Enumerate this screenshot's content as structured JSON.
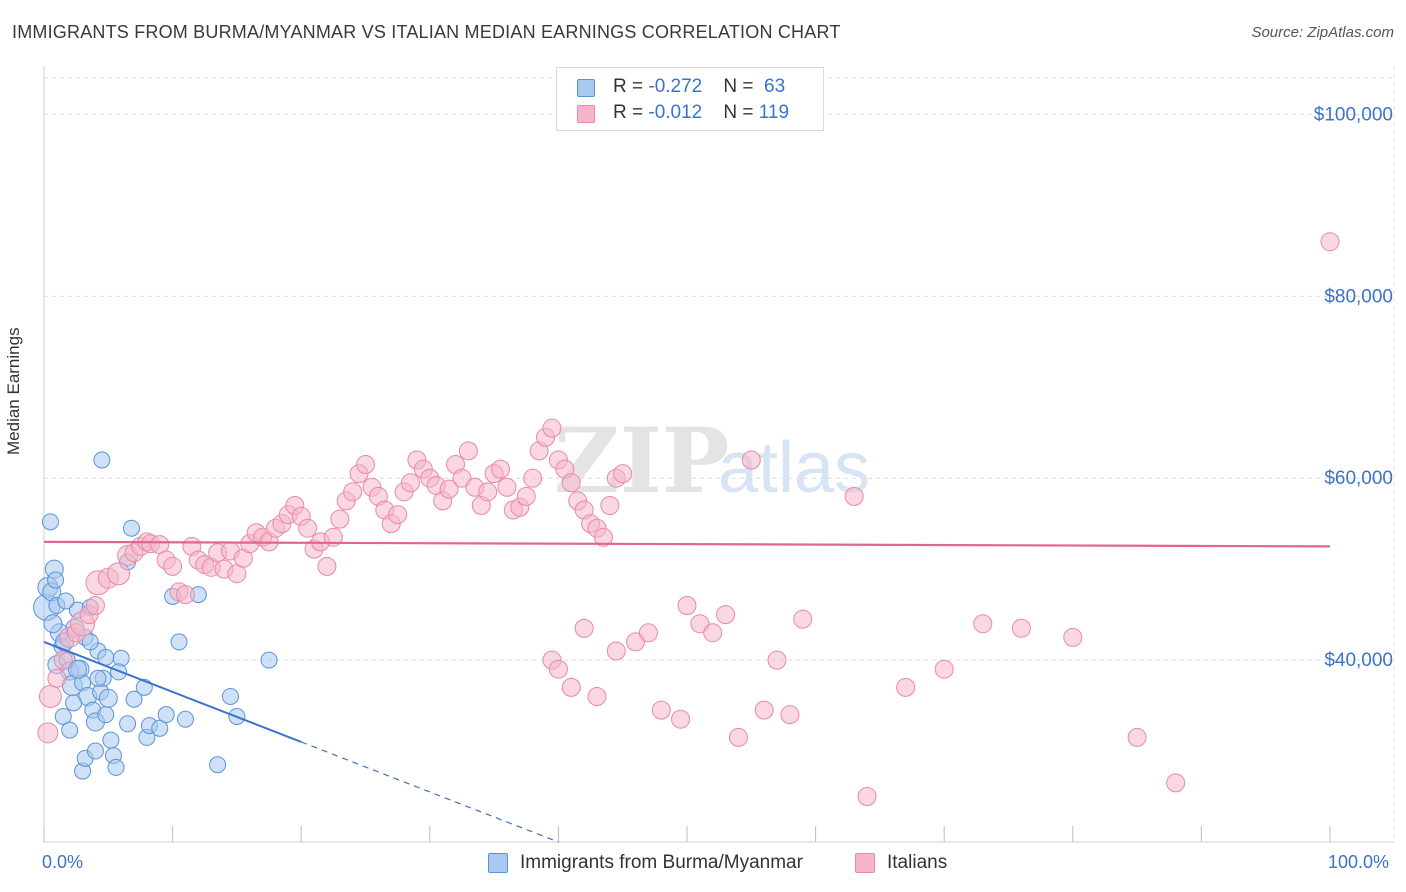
{
  "title": "IMMIGRANTS FROM BURMA/MYANMAR VS ITALIAN MEDIAN EARNINGS CORRELATION CHART",
  "source": "Source: ZipAtlas.com",
  "watermark": {
    "zip": "ZIP",
    "atlas": "atlas"
  },
  "legend_top": [
    {
      "r_label": "R = ",
      "r_value": "-0.272",
      "n_label": "N = ",
      "n_value": "63",
      "color": "#a8c8f0"
    },
    {
      "r_label": "R = ",
      "r_value": "-0.012",
      "n_label": "N = ",
      "n_value": "119",
      "color": "#f6b6c9"
    }
  ],
  "colors": {
    "blue_fill": "#a8c8f0",
    "blue_stroke": "#5b93d6",
    "blue_line": "#3b73c9",
    "pink_fill": "#f6b6c9",
    "pink_stroke": "#e88aa6",
    "pink_line": "#e0668e",
    "accent_text": "#3b73c9",
    "grid": "#dcdcdc"
  },
  "chart_data": {
    "type": "scatter",
    "title": "IMMIGRANTS FROM BURMA/MYANMAR VS ITALIAN MEDIAN EARNINGS CORRELATION CHART",
    "xlabel": "",
    "ylabel": "Median Earnings",
    "xlim": [
      0,
      100
    ],
    "ylim": [
      20000,
      104000
    ],
    "x_tick_labels": [
      "0.0%",
      "100.0%"
    ],
    "y_ticks": [
      40000,
      60000,
      80000,
      100000
    ],
    "y_tick_labels": [
      "$40,000",
      "$60,000",
      "$80,000",
      "$100,000"
    ],
    "grid": true,
    "legend_position": "bottom",
    "series": [
      {
        "name": "Immigrants from Burma/Myanmar",
        "r": -0.272,
        "n": 63,
        "trend": {
          "x0": 0,
          "y0": 42000,
          "x1": 20,
          "y1": 31000,
          "dashed_to_x": 40,
          "dashed_to_y": 20000
        },
        "points": [
          [
            0.2,
            45800,
            13
          ],
          [
            0.3,
            48000,
            10
          ],
          [
            0.5,
            55200,
            8
          ],
          [
            0.6,
            47500,
            9
          ],
          [
            0.8,
            50000,
            9
          ],
          [
            0.9,
            48800,
            8
          ],
          [
            1.0,
            46000,
            8
          ],
          [
            1.2,
            43000,
            9
          ],
          [
            1.4,
            41500,
            8
          ],
          [
            1.6,
            42000,
            9
          ],
          [
            1.0,
            39500,
            9
          ],
          [
            1.8,
            40000,
            8
          ],
          [
            2.0,
            38800,
            9
          ],
          [
            2.2,
            37200,
            10
          ],
          [
            2.4,
            43500,
            9
          ],
          [
            2.6,
            45500,
            8
          ],
          [
            2.8,
            39000,
            9
          ],
          [
            3.0,
            37500,
            8
          ],
          [
            3.2,
            42500,
            8
          ],
          [
            3.4,
            36000,
            9
          ],
          [
            3.6,
            45800,
            8
          ],
          [
            3.8,
            34500,
            8
          ],
          [
            4.0,
            33200,
            9
          ],
          [
            4.2,
            41000,
            8
          ],
          [
            4.4,
            36500,
            8
          ],
          [
            4.6,
            38000,
            8
          ],
          [
            4.8,
            34000,
            8
          ],
          [
            5.0,
            35800,
            9
          ],
          [
            5.2,
            31200,
            8
          ],
          [
            5.4,
            29500,
            8
          ],
          [
            5.6,
            28200,
            8
          ],
          [
            3.0,
            27800,
            8
          ],
          [
            3.2,
            29200,
            8
          ],
          [
            1.5,
            33800,
            8
          ],
          [
            2.0,
            32300,
            8
          ],
          [
            6.0,
            40200,
            8
          ],
          [
            6.5,
            33000,
            8
          ],
          [
            7.0,
            35700,
            8
          ],
          [
            6.8,
            54500,
            8
          ],
          [
            6.5,
            50800,
            8
          ],
          [
            7.8,
            37000,
            8
          ],
          [
            8.0,
            31500,
            8
          ],
          [
            8.2,
            32800,
            8
          ],
          [
            9.0,
            32500,
            8
          ],
          [
            9.5,
            34000,
            8
          ],
          [
            10.0,
            47000,
            8
          ],
          [
            11.0,
            33500,
            8
          ],
          [
            10.5,
            42000,
            8
          ],
          [
            12.0,
            47200,
            8
          ],
          [
            13.5,
            28500,
            8
          ],
          [
            14.5,
            36000,
            8
          ],
          [
            15.0,
            33800,
            8
          ],
          [
            17.5,
            40000,
            8
          ],
          [
            4.5,
            62000,
            8
          ],
          [
            4.2,
            38000,
            8
          ],
          [
            2.6,
            39000,
            9
          ],
          [
            1.7,
            46500,
            8
          ],
          [
            0.7,
            44000,
            9
          ],
          [
            3.6,
            42000,
            8
          ],
          [
            4.8,
            40300,
            8
          ],
          [
            5.8,
            38700,
            8
          ],
          [
            2.3,
            35300,
            8
          ],
          [
            4.0,
            30000,
            8
          ]
        ]
      },
      {
        "name": "Italians",
        "r": -0.012,
        "n": 119,
        "trend": {
          "x0": 0,
          "y0": 53000,
          "x1": 100,
          "y1": 52500
        },
        "points": [
          [
            0.3,
            32000,
            10
          ],
          [
            0.5,
            36000,
            11
          ],
          [
            1.0,
            38000,
            9
          ],
          [
            1.5,
            40000,
            9
          ],
          [
            2.0,
            42500,
            10
          ],
          [
            2.5,
            43000,
            9
          ],
          [
            3.0,
            44000,
            12
          ],
          [
            3.5,
            45000,
            9
          ],
          [
            4.0,
            46000,
            9
          ],
          [
            4.2,
            48500,
            12
          ],
          [
            5.0,
            49000,
            10
          ],
          [
            5.8,
            49500,
            11
          ],
          [
            6.5,
            51500,
            10
          ],
          [
            7.0,
            51800,
            9
          ],
          [
            7.5,
            52500,
            9
          ],
          [
            8.0,
            53000,
            9
          ],
          [
            8.3,
            52800,
            9
          ],
          [
            9.0,
            52700,
            9
          ],
          [
            9.5,
            51000,
            9
          ],
          [
            10.0,
            50300,
            9
          ],
          [
            10.5,
            47500,
            9
          ],
          [
            11.0,
            47200,
            9
          ],
          [
            11.5,
            52500,
            9
          ],
          [
            12.0,
            51000,
            9
          ],
          [
            12.5,
            50500,
            9
          ],
          [
            13.0,
            50200,
            9
          ],
          [
            13.5,
            51800,
            9
          ],
          [
            14.0,
            50000,
            9
          ],
          [
            14.5,
            52000,
            9
          ],
          [
            15.0,
            49500,
            9
          ],
          [
            15.5,
            51200,
            9
          ],
          [
            16.0,
            52800,
            9
          ],
          [
            16.5,
            54000,
            9
          ],
          [
            17.0,
            53500,
            9
          ],
          [
            17.5,
            53000,
            9
          ],
          [
            18.0,
            54500,
            9
          ],
          [
            18.5,
            55000,
            9
          ],
          [
            19.0,
            56000,
            9
          ],
          [
            19.5,
            57000,
            9
          ],
          [
            20.0,
            55800,
            9
          ],
          [
            20.5,
            54500,
            9
          ],
          [
            21.0,
            52200,
            9
          ],
          [
            21.5,
            53000,
            9
          ],
          [
            22.0,
            50300,
            9
          ],
          [
            22.5,
            53500,
            9
          ],
          [
            23.0,
            55500,
            9
          ],
          [
            23.5,
            57500,
            9
          ],
          [
            24.0,
            58500,
            9
          ],
          [
            24.5,
            60500,
            9
          ],
          [
            25.0,
            61500,
            9
          ],
          [
            25.5,
            59000,
            9
          ],
          [
            26.0,
            58000,
            9
          ],
          [
            26.5,
            56500,
            9
          ],
          [
            27.0,
            55000,
            9
          ],
          [
            27.5,
            56000,
            9
          ],
          [
            28.0,
            58500,
            9
          ],
          [
            28.5,
            59500,
            9
          ],
          [
            29.0,
            62000,
            9
          ],
          [
            29.5,
            61000,
            9
          ],
          [
            30.0,
            60000,
            9
          ],
          [
            30.5,
            59200,
            9
          ],
          [
            31.0,
            57500,
            9
          ],
          [
            31.5,
            58800,
            9
          ],
          [
            32.0,
            61500,
            9
          ],
          [
            32.5,
            60000,
            9
          ],
          [
            33.0,
            63000,
            9
          ],
          [
            33.5,
            59000,
            9
          ],
          [
            34.0,
            57000,
            9
          ],
          [
            34.5,
            58500,
            9
          ],
          [
            35.0,
            60500,
            9
          ],
          [
            35.5,
            61000,
            9
          ],
          [
            36.0,
            59000,
            9
          ],
          [
            36.5,
            56500,
            9
          ],
          [
            37.0,
            56800,
            9
          ],
          [
            37.5,
            58000,
            9
          ],
          [
            38.0,
            60000,
            9
          ],
          [
            38.5,
            63000,
            9
          ],
          [
            39.0,
            64500,
            9
          ],
          [
            39.5,
            65500,
            9
          ],
          [
            40.0,
            62000,
            9
          ],
          [
            40.5,
            61000,
            9
          ],
          [
            41.0,
            59500,
            9
          ],
          [
            41.5,
            57500,
            9
          ],
          [
            42.0,
            56500,
            9
          ],
          [
            42.5,
            55000,
            9
          ],
          [
            43.0,
            54500,
            9
          ],
          [
            43.5,
            53500,
            9
          ],
          [
            44.0,
            57000,
            9
          ],
          [
            44.5,
            60000,
            9
          ],
          [
            45.0,
            60500,
            9
          ],
          [
            39.5,
            40000,
            9
          ],
          [
            40.0,
            39000,
            9
          ],
          [
            41.0,
            37000,
            9
          ],
          [
            42.0,
            43500,
            9
          ],
          [
            43.0,
            36000,
            9
          ],
          [
            44.5,
            41000,
            9
          ],
          [
            46.0,
            42000,
            9
          ],
          [
            47.0,
            43000,
            9
          ],
          [
            48.0,
            34500,
            9
          ],
          [
            49.5,
            33500,
            9
          ],
          [
            50.0,
            46000,
            9
          ],
          [
            51.0,
            44000,
            9
          ],
          [
            52.0,
            43000,
            9
          ],
          [
            53.0,
            45000,
            9
          ],
          [
            54.0,
            31500,
            9
          ],
          [
            55.0,
            62000,
            9
          ],
          [
            56.0,
            34500,
            9
          ],
          [
            57.0,
            40000,
            9
          ],
          [
            58.0,
            34000,
            9
          ],
          [
            59.0,
            44500,
            9
          ],
          [
            63.0,
            58000,
            9
          ],
          [
            64.0,
            25000,
            9
          ],
          [
            67.0,
            37000,
            9
          ],
          [
            70.0,
            39000,
            9
          ],
          [
            73.0,
            44000,
            9
          ],
          [
            76.0,
            43500,
            9
          ],
          [
            80.0,
            42500,
            9
          ],
          [
            85.0,
            31500,
            9
          ],
          [
            88.0,
            26500,
            9
          ],
          [
            100.0,
            86000,
            9
          ]
        ]
      }
    ]
  }
}
